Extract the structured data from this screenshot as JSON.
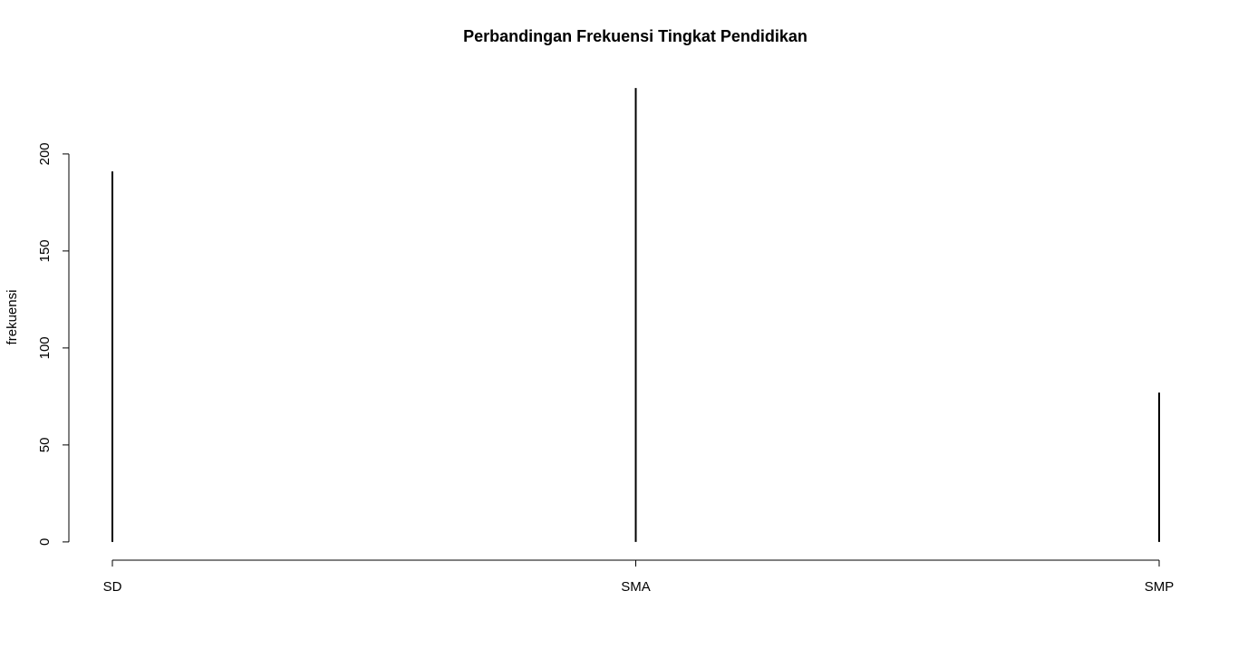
{
  "chart_data": {
    "type": "spike",
    "title": "Perbandingan Frekuensi Tingkat Pendidikan",
    "y_label": "frekuensi",
    "categories": [
      "SD",
      "SMA",
      "SMP"
    ],
    "values": [
      191,
      234,
      77
    ],
    "color": "#000000",
    "ylim": [
      -9.4,
      243.4
    ],
    "yticks": [
      0,
      50,
      100,
      150,
      200
    ],
    "grid": false
  }
}
